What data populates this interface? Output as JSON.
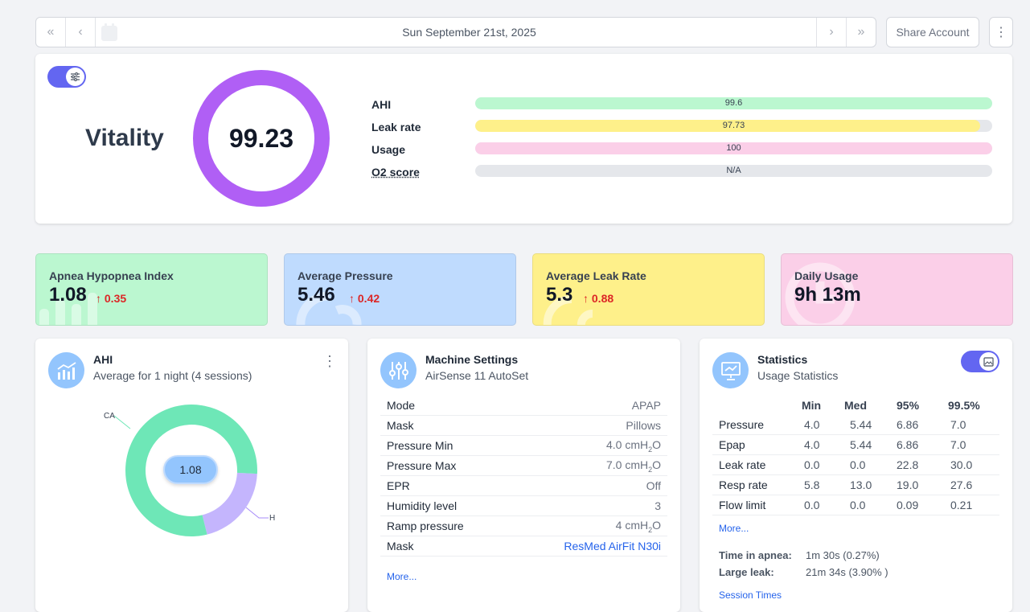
{
  "nav": {
    "date": "Sun September 21st, 2025",
    "share_label": "Share Account",
    "first_icon": "«",
    "prev_icon": "‹",
    "next_icon": "›",
    "last_icon": "»",
    "menu_icon": "⋮"
  },
  "vitality": {
    "label": "Vitality",
    "score": "99.23",
    "metrics": [
      {
        "name": "AHI",
        "value": "99.6",
        "fill": 1.0,
        "color": "#bbf7d0"
      },
      {
        "name": "Leak rate",
        "value": "97.73",
        "fill": 0.977,
        "color": "#fef08a"
      },
      {
        "name": "Usage",
        "value": "100",
        "fill": 1.0,
        "color": "#fbcfe8"
      },
      {
        "name": "O2 score",
        "value": "N/A",
        "fill": 0,
        "color": "#e5e7eb"
      }
    ]
  },
  "stat_cards": [
    {
      "title": "Apnea Hypopnea Index",
      "value": "1.08",
      "delta": "0.35",
      "color": "#bbf7d0"
    },
    {
      "title": "Average Pressure",
      "value": "5.46",
      "delta": "0.42",
      "color": "#bfdbfe"
    },
    {
      "title": "Average Leak Rate",
      "value": "5.3",
      "delta": "0.88",
      "color": "#fef08a"
    },
    {
      "title": "Daily Usage",
      "value": "9h 13m",
      "delta": "",
      "color": "#fbcfe8"
    }
  ],
  "ahi_panel": {
    "title": "AHI",
    "subtitle": "Average for 1 night (4 sessions)",
    "center_value": "1.08",
    "label_ca": "CA",
    "label_h": "H"
  },
  "chart_data": {
    "type": "pie",
    "title": "AHI",
    "categories": [
      "CA",
      "H"
    ],
    "values": [
      0.86,
      0.22
    ],
    "colors": [
      "#6ee7b7",
      "#c4b5fd"
    ]
  },
  "machine": {
    "title": "Machine Settings",
    "subtitle": "AirSense 11 AutoSet",
    "rows": [
      {
        "k": "Mode",
        "v": "APAP"
      },
      {
        "k": "Mask",
        "v": "Pillows"
      },
      {
        "k": "Pressure Min",
        "v": "4.0 cmH",
        "sub": "2",
        "tail": "O"
      },
      {
        "k": "Pressure Max",
        "v": "7.0 cmH",
        "sub": "2",
        "tail": "O"
      },
      {
        "k": "EPR",
        "v": "Off"
      },
      {
        "k": "Humidity level",
        "v": "3"
      },
      {
        "k": "Ramp pressure",
        "v": "4 cmH",
        "sub": "2",
        "tail": "O"
      },
      {
        "k": "Mask",
        "v": "ResMed AirFit N30i"
      }
    ],
    "more": "More..."
  },
  "statistics": {
    "title": "Statistics",
    "subtitle": "Usage Statistics",
    "headers": [
      "Min",
      "Med",
      "95%",
      "99.5%"
    ],
    "rows": [
      {
        "name": "Pressure",
        "vals": [
          "4.0",
          "5.44",
          "6.86",
          "7.0"
        ]
      },
      {
        "name": "Epap",
        "vals": [
          "4.0",
          "5.44",
          "6.86",
          "7.0"
        ]
      },
      {
        "name": "Leak rate",
        "vals": [
          "0.0",
          "0.0",
          "22.8",
          "30.0"
        ]
      },
      {
        "name": "Resp rate",
        "vals": [
          "5.8",
          "13.0",
          "19.0",
          "27.6"
        ]
      },
      {
        "name": "Flow limit",
        "vals": [
          "0.0",
          "0.0",
          "0.09",
          "0.21"
        ]
      }
    ],
    "more": "More...",
    "apnea_label": "Time in apnea:",
    "apnea_value": "1m 30s (0.27%)",
    "leak_label": "Large leak:",
    "leak_value": "21m 34s (3.90% )",
    "session_times": "Session Times"
  }
}
